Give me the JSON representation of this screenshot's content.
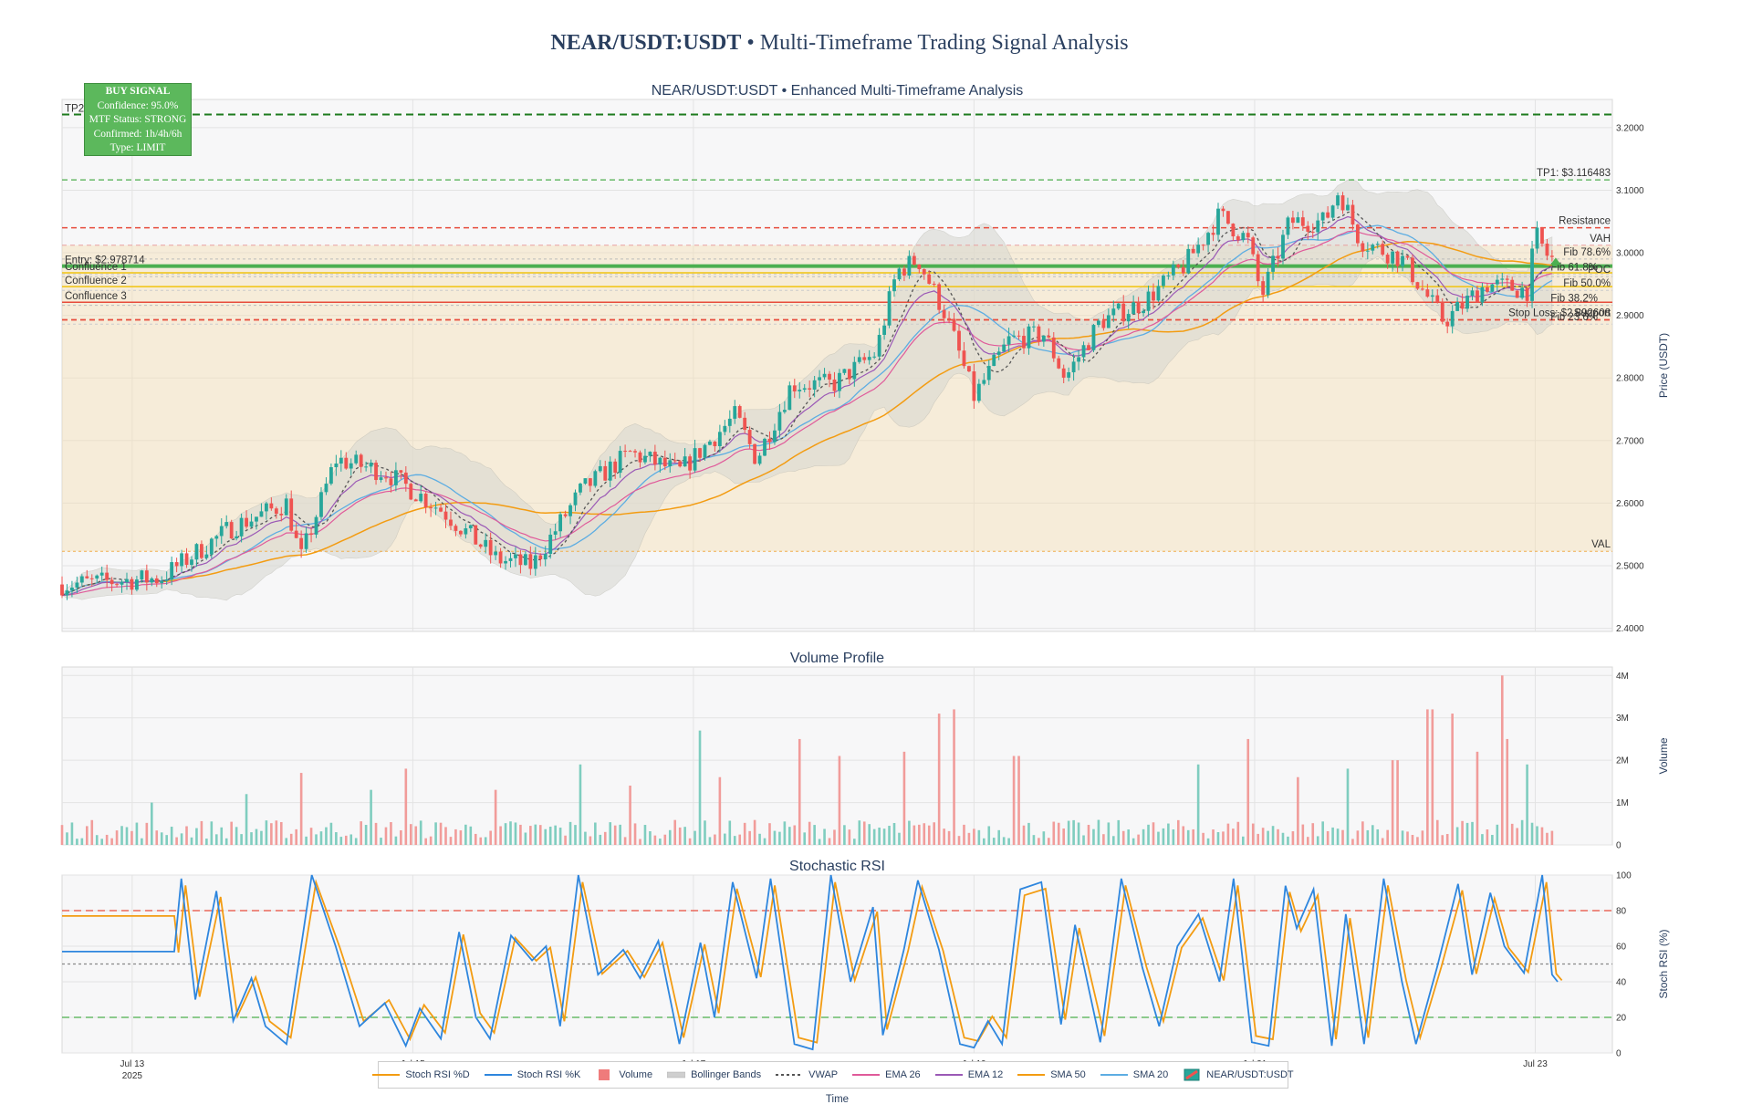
{
  "title": {
    "bold": "NEAR/USDT:USDT",
    "rest": " • Multi-Timeframe Trading Signal Analysis"
  },
  "signal_box": {
    "header": "BUY SIGNAL",
    "lines": [
      "Confidence: 95.0%",
      "MTF Status: STRONG",
      "Confirmed: 1h/4h/6h",
      "Type: LIMIT"
    ]
  },
  "legend": [
    {
      "label": "Stoch RSI %D",
      "kind": "line",
      "color": "#f39c12"
    },
    {
      "label": "Stoch RSI %K",
      "kind": "line",
      "color": "#2e86de"
    },
    {
      "label": "Volume",
      "kind": "bar",
      "color": "#ef7b7b"
    },
    {
      "label": "Bollinger Bands",
      "kind": "band",
      "color": "#cfcfcf"
    },
    {
      "label": "VWAP",
      "kind": "dot",
      "color": "#555555"
    },
    {
      "label": "EMA 26",
      "kind": "line",
      "color": "#e05a9a"
    },
    {
      "label": "EMA 12",
      "kind": "line",
      "color": "#9b59b6"
    },
    {
      "label": "SMA 50",
      "kind": "line",
      "color": "#f39c12"
    },
    {
      "label": "SMA 20",
      "kind": "line",
      "color": "#5dade2"
    },
    {
      "label": "NEAR/USDT:USDT",
      "kind": "candle",
      "color": "#26a69a"
    }
  ],
  "chart_data": [
    {
      "type": "candlestick",
      "title": "NEAR/USDT:USDT • Enhanced Multi-Timeframe Analysis",
      "ylabel": "Price (USDT)",
      "ylim": [
        2.395,
        3.245
      ],
      "yticks": [
        2.4,
        2.5,
        2.6,
        2.7,
        2.8,
        2.9,
        3.0,
        3.1,
        3.2
      ],
      "ytick_labels": [
        "2.4000",
        "2.5000",
        "2.6000",
        "2.7000",
        "2.8000",
        "2.9000",
        "3.0000",
        "3.1000",
        "3.2000"
      ],
      "xlim_days": [
        12.5,
        23.55
      ],
      "price_path": [
        [
          12.5,
          2.47
        ],
        [
          13.2,
          2.48
        ],
        [
          13.7,
          2.56
        ],
        [
          14.1,
          2.6
        ],
        [
          14.2,
          2.51
        ],
        [
          14.45,
          2.67
        ],
        [
          14.8,
          2.65
        ],
        [
          15.2,
          2.59
        ],
        [
          15.6,
          2.51
        ],
        [
          15.85,
          2.5
        ],
        [
          16.2,
          2.62
        ],
        [
          16.55,
          2.68
        ],
        [
          16.9,
          2.65
        ],
        [
          17.3,
          2.74
        ],
        [
          17.45,
          2.67
        ],
        [
          17.7,
          2.79
        ],
        [
          18.0,
          2.79
        ],
        [
          18.3,
          2.84
        ],
        [
          18.45,
          2.97
        ],
        [
          18.6,
          2.99
        ],
        [
          18.8,
          2.9
        ],
        [
          19.0,
          2.77
        ],
        [
          19.25,
          2.86
        ],
        [
          19.5,
          2.87
        ],
        [
          19.65,
          2.8
        ],
        [
          19.9,
          2.89
        ],
        [
          20.2,
          2.92
        ],
        [
          20.5,
          2.98
        ],
        [
          20.75,
          3.06
        ],
        [
          20.95,
          3.02
        ],
        [
          21.05,
          2.93
        ],
        [
          21.25,
          3.05
        ],
        [
          21.5,
          3.05
        ],
        [
          21.6,
          3.1
        ],
        [
          21.75,
          3.02
        ],
        [
          22.05,
          2.99
        ],
        [
          22.35,
          2.89
        ],
        [
          22.65,
          2.95
        ],
        [
          22.95,
          2.94
        ],
        [
          23.0,
          3.03
        ],
        [
          23.1,
          2.99
        ]
      ],
      "levels": [
        {
          "label": "TP2",
          "value": 3.221,
          "color": "#1e7b1e",
          "dash": "8,5",
          "width": 2,
          "side": "left"
        },
        {
          "label": "TP1: $3.116483",
          "value": 3.116483,
          "color": "#4cae4c",
          "dash": "6,4",
          "width": 1.3,
          "side": "right"
        },
        {
          "label": "Resistance",
          "value": 3.04,
          "color": "#e74c3c",
          "dash": "6,4",
          "width": 1.5,
          "side": "right"
        },
        {
          "label": "VAH",
          "value": 3.012,
          "color": "#e8a0a0",
          "dash": "5,4",
          "width": 1,
          "side": "right"
        },
        {
          "label": "Fib 78.6%",
          "value": 2.99,
          "color": "#bbbbbb",
          "dash": "3,3",
          "width": 1,
          "side": "right"
        },
        {
          "label": "Entry: $2.978714",
          "value": 2.978714,
          "color": "#4caf50",
          "dash": "",
          "width": 4,
          "side": "left"
        },
        {
          "label": "Confluence 1",
          "value": 2.968,
          "color": "#f1c40f",
          "dash": "",
          "width": 1.5,
          "side": "left"
        },
        {
          "label": "POC",
          "value": 2.962,
          "color": "#bbbbbb",
          "dash": "3,3",
          "width": 1,
          "side": "right"
        },
        {
          "label": "Fib 61.8%",
          "value": 2.966,
          "color": "#cccccc",
          "dash": "3,3",
          "width": 1,
          "side": "right"
        },
        {
          "label": "Confluence 2",
          "value": 2.946,
          "color": "#f1c40f",
          "dash": "",
          "width": 1.5,
          "side": "left"
        },
        {
          "label": "Fib 50.0%",
          "value": 2.94,
          "color": "#cccccc",
          "dash": "3,3",
          "width": 1,
          "side": "right"
        },
        {
          "label": "Fib 38.2%",
          "value": 2.916,
          "color": "#bbbbbb",
          "dash": "3,3",
          "width": 1,
          "side": "right"
        },
        {
          "label": "Confluence 3",
          "value": 2.921,
          "color": "#e74c3c",
          "dash": "",
          "width": 1.5,
          "side": "left"
        },
        {
          "label": "Support",
          "value": 2.893,
          "color": "#e74c3c",
          "dash": "6,4",
          "width": 1.5,
          "side": "right"
        },
        {
          "label": "Fib 23.6%",
          "value": 2.886,
          "color": "#cccccc",
          "dash": "3,3",
          "width": 1,
          "side": "right"
        },
        {
          "label": "Stop Loss: $2.892608",
          "value": 2.892608,
          "color": "#e74c3c",
          "dash": "6,4",
          "width": 1.3,
          "side": "right"
        },
        {
          "label": "VAL",
          "value": 2.523,
          "color": "#f0ad4e",
          "dash": "3,3",
          "width": 1,
          "side": "right"
        }
      ],
      "value_area": {
        "from": 2.523,
        "to": 3.012,
        "color": "#f5deb3"
      }
    },
    {
      "type": "bar",
      "title": "Volume Profile",
      "ylabel": "Volume",
      "ylim": [
        0,
        4200000
      ],
      "yticks": [
        0,
        1000000,
        2000000,
        3000000,
        4000000
      ],
      "ytick_labels": [
        "0",
        "1M",
        "2M",
        "3M",
        "4M"
      ],
      "base_volume": 350000,
      "spikes": [
        [
          13.15,
          1000000,
          "g"
        ],
        [
          13.8,
          1200000,
          "g"
        ],
        [
          14.22,
          1700000,
          "r"
        ],
        [
          14.7,
          1300000,
          "g"
        ],
        [
          14.95,
          1800000,
          "r"
        ],
        [
          15.6,
          1300000,
          "r"
        ],
        [
          16.2,
          1900000,
          "g"
        ],
        [
          16.55,
          1400000,
          "r"
        ],
        [
          17.05,
          2700000,
          "g"
        ],
        [
          17.2,
          1600000,
          "r"
        ],
        [
          17.75,
          2500000,
          "r"
        ],
        [
          18.05,
          2100000,
          "r"
        ],
        [
          18.5,
          2200000,
          "r"
        ],
        [
          18.75,
          3100000,
          "r"
        ],
        [
          18.85,
          3200000,
          "r"
        ],
        [
          19.3,
          2100000,
          "r"
        ],
        [
          20.6,
          1900000,
          "g"
        ],
        [
          20.95,
          2500000,
          "r"
        ],
        [
          21.3,
          1600000,
          "r"
        ],
        [
          21.65,
          1800000,
          "g"
        ],
        [
          22.0,
          2000000,
          "r"
        ],
        [
          22.25,
          3200000,
          "r"
        ],
        [
          22.4,
          3100000,
          "r"
        ],
        [
          22.58,
          2200000,
          "r"
        ],
        [
          22.75,
          4000000,
          "r"
        ],
        [
          22.8,
          2500000,
          "r"
        ],
        [
          22.95,
          1900000,
          "g"
        ]
      ]
    },
    {
      "type": "line",
      "title": "Stochastic RSI",
      "ylabel": "Stoch RSI (%)",
      "xlabel": "Time",
      "ylim": [
        0,
        100
      ],
      "yticks": [
        0,
        20,
        40,
        60,
        80,
        100
      ],
      "ytick_labels": [
        "0",
        "20",
        "40",
        "60",
        "80",
        "100"
      ],
      "overbought": 80,
      "oversold": 20,
      "midline": 50,
      "k_start": {
        "from": 12.5,
        "to": 13.3,
        "k": 57,
        "d": 77
      },
      "k_pivots": [
        [
          13.3,
          57
        ],
        [
          13.35,
          98
        ],
        [
          13.45,
          30
        ],
        [
          13.6,
          91
        ],
        [
          13.72,
          18
        ],
        [
          13.85,
          42
        ],
        [
          13.95,
          15
        ],
        [
          14.1,
          5
        ],
        [
          14.28,
          100
        ],
        [
          14.45,
          60
        ],
        [
          14.62,
          15
        ],
        [
          14.8,
          28
        ],
        [
          14.95,
          4
        ],
        [
          15.05,
          25
        ],
        [
          15.2,
          8
        ],
        [
          15.33,
          68
        ],
        [
          15.45,
          20
        ],
        [
          15.55,
          8
        ],
        [
          15.7,
          66
        ],
        [
          15.85,
          52
        ],
        [
          15.95,
          60
        ],
        [
          16.05,
          15
        ],
        [
          16.18,
          100
        ],
        [
          16.32,
          44
        ],
        [
          16.5,
          58
        ],
        [
          16.62,
          42
        ],
        [
          16.75,
          63
        ],
        [
          16.9,
          5
        ],
        [
          17.05,
          62
        ],
        [
          17.15,
          20
        ],
        [
          17.28,
          96
        ],
        [
          17.45,
          42
        ],
        [
          17.55,
          98
        ],
        [
          17.72,
          5
        ],
        [
          17.85,
          2
        ],
        [
          17.98,
          100
        ],
        [
          18.12,
          40
        ],
        [
          18.28,
          82
        ],
        [
          18.35,
          10
        ],
        [
          18.5,
          58
        ],
        [
          18.6,
          97
        ],
        [
          18.75,
          58
        ],
        [
          18.9,
          5
        ],
        [
          19.0,
          3
        ],
        [
          19.1,
          18
        ],
        [
          19.2,
          5
        ],
        [
          19.33,
          92
        ],
        [
          19.48,
          96
        ],
        [
          19.62,
          16
        ],
        [
          19.72,
          72
        ],
        [
          19.9,
          6
        ],
        [
          20.05,
          98
        ],
        [
          20.2,
          48
        ],
        [
          20.32,
          15
        ],
        [
          20.45,
          60
        ],
        [
          20.6,
          78
        ],
        [
          20.75,
          40
        ],
        [
          20.85,
          98
        ],
        [
          20.98,
          6
        ],
        [
          21.1,
          4
        ],
        [
          21.22,
          94
        ],
        [
          21.3,
          70
        ],
        [
          21.42,
          92
        ],
        [
          21.55,
          4
        ],
        [
          21.65,
          78
        ],
        [
          21.78,
          5
        ],
        [
          21.92,
          98
        ],
        [
          22.05,
          40
        ],
        [
          22.15,
          5
        ],
        [
          22.3,
          48
        ],
        [
          22.45,
          95
        ],
        [
          22.55,
          44
        ],
        [
          22.68,
          90
        ],
        [
          22.78,
          60
        ],
        [
          22.92,
          45
        ],
        [
          23.05,
          100
        ],
        [
          23.12,
          44
        ],
        [
          23.16,
          40
        ]
      ]
    }
  ],
  "xaxis": {
    "ticks": [
      {
        "label": "Jul 13",
        "sub": "2025",
        "day": 13
      },
      {
        "label": "Jul 15",
        "day": 15
      },
      {
        "label": "Jul 17",
        "day": 17
      },
      {
        "label": "Jul 19",
        "day": 19
      },
      {
        "label": "Jul 21",
        "day": 21
      },
      {
        "label": "Jul 23",
        "day": 23
      }
    ]
  }
}
